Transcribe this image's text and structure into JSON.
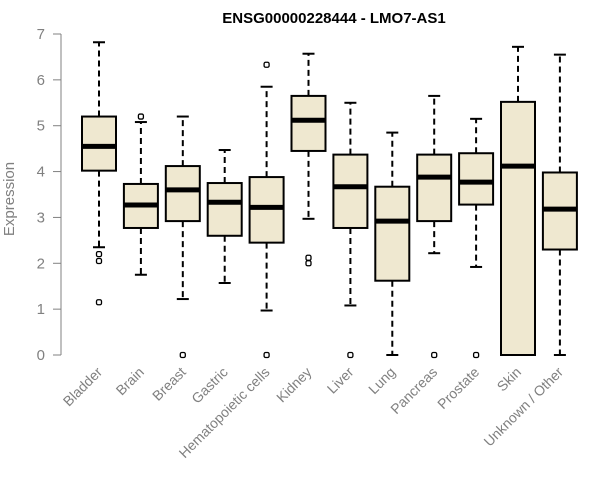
{
  "chart_data": {
    "type": "boxplot",
    "title": "ENSG00000228444 - LMO7-AS1",
    "ylabel": "Expression",
    "ylim": [
      0,
      7
    ],
    "yticks": [
      0,
      1,
      2,
      3,
      4,
      5,
      6,
      7
    ],
    "grid": false,
    "legend": "none",
    "box_fill": "#efe8d0",
    "box_stroke": "#000000",
    "axis_color": "#808080",
    "categories": [
      "Bladder",
      "Brain",
      "Breast",
      "Gastric",
      "Hematopoietic cells",
      "Kidney",
      "Liver",
      "Lung",
      "Pancreas",
      "Prostate",
      "Skin",
      "Unknown / Other"
    ],
    "boxes": [
      {
        "whisker_low": 2.35,
        "q1": 4.02,
        "median": 4.55,
        "q3": 5.2,
        "whisker_high": 6.82,
        "outliers": [
          2.2,
          2.05,
          1.15
        ]
      },
      {
        "whisker_low": 1.75,
        "q1": 2.77,
        "median": 3.27,
        "q3": 3.73,
        "whisker_high": 5.08,
        "outliers": [
          5.2
        ]
      },
      {
        "whisker_low": 1.22,
        "q1": 2.92,
        "median": 3.6,
        "q3": 4.12,
        "whisker_high": 5.2,
        "outliers": [
          0.0
        ]
      },
      {
        "whisker_low": 1.57,
        "q1": 2.6,
        "median": 3.33,
        "q3": 3.75,
        "whisker_high": 4.47,
        "outliers": []
      },
      {
        "whisker_low": 0.97,
        "q1": 2.45,
        "median": 3.22,
        "q3": 3.88,
        "whisker_high": 5.85,
        "outliers": [
          6.33,
          0.0
        ]
      },
      {
        "whisker_low": 2.97,
        "q1": 4.45,
        "median": 5.12,
        "q3": 5.65,
        "whisker_high": 6.57,
        "outliers": [
          2.12,
          2.0
        ]
      },
      {
        "whisker_low": 1.08,
        "q1": 2.77,
        "median": 3.67,
        "q3": 4.37,
        "whisker_high": 5.5,
        "outliers": [
          0.0
        ]
      },
      {
        "whisker_low": 0.0,
        "q1": 1.62,
        "median": 2.92,
        "q3": 3.67,
        "whisker_high": 4.85,
        "outliers": []
      },
      {
        "whisker_low": 2.22,
        "q1": 2.92,
        "median": 3.88,
        "q3": 4.37,
        "whisker_high": 5.65,
        "outliers": [
          0.0
        ]
      },
      {
        "whisker_low": 1.92,
        "q1": 3.28,
        "median": 3.77,
        "q3": 4.4,
        "whisker_high": 5.15,
        "outliers": [
          0.0
        ]
      },
      {
        "whisker_low": 0.0,
        "q1": 0.0,
        "median": 4.12,
        "q3": 5.52,
        "whisker_high": 6.72,
        "outliers": []
      },
      {
        "whisker_low": 0.0,
        "q1": 2.3,
        "median": 3.18,
        "q3": 3.98,
        "whisker_high": 6.55,
        "outliers": []
      }
    ]
  }
}
